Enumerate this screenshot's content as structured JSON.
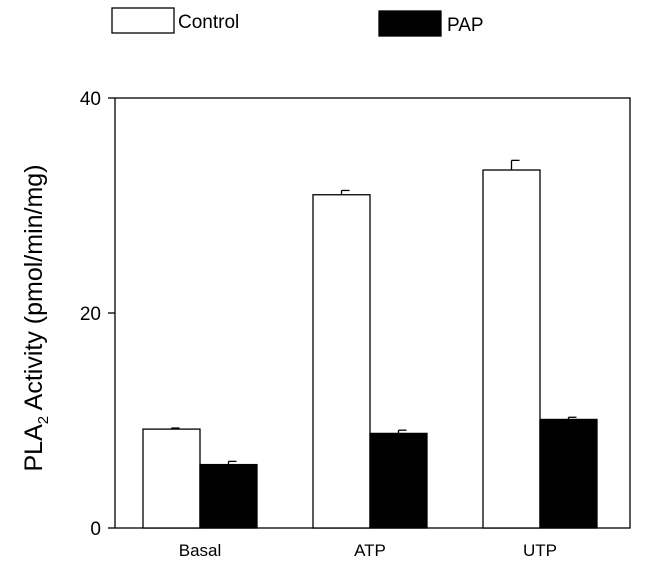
{
  "chart_data": {
    "type": "bar",
    "categories": [
      "Basal",
      "ATP",
      "UTP"
    ],
    "series": [
      {
        "name": "Control",
        "values": [
          9.2,
          31.0,
          33.3
        ],
        "errors": [
          0.1,
          0.4,
          0.9
        ],
        "color": "#ffffff"
      },
      {
        "name": "PAP",
        "values": [
          5.9,
          8.8,
          10.1
        ],
        "errors": [
          0.3,
          0.3,
          0.2
        ],
        "color": "#000000"
      }
    ],
    "ylabel_main": "PLA",
    "ylabel_sub": "2",
    "ylabel_rest": " Activity (pmol/min/mg)",
    "yticks": [
      0,
      20,
      40
    ],
    "ylim": [
      0,
      40
    ],
    "legend_position": "top",
    "grid": false
  }
}
